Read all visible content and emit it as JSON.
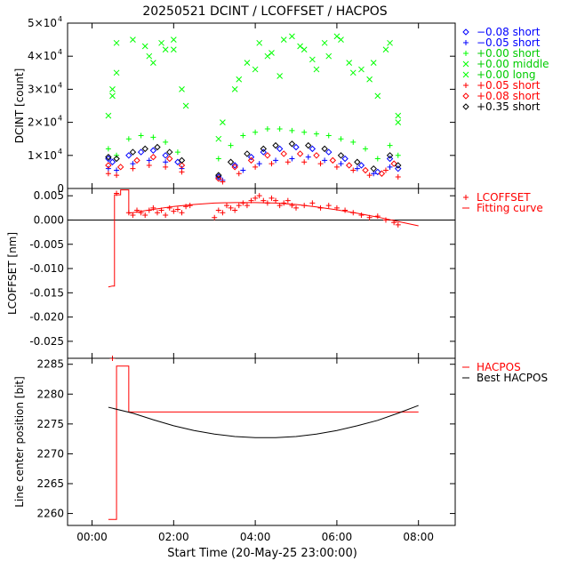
{
  "title": "20250521 DCINT / LCOFFSET / HACPOS",
  "xaxis": {
    "label": "Start Time (20-May-25 23:00:00)",
    "range": [
      -0.6,
      8.9
    ],
    "ticks": [
      0,
      2,
      4,
      6,
      8
    ],
    "tick_labels": [
      "00:00",
      "02:00",
      "04:00",
      "06:00",
      "08:00"
    ]
  },
  "chart_data": [
    {
      "type": "scatter",
      "ylabel": "DCINT [count]",
      "ylim": [
        0,
        50000
      ],
      "yticks": [
        0,
        10000,
        20000,
        30000,
        40000,
        50000
      ],
      "ytick_labels": [
        {
          "mant": "0",
          "exp": ""
        },
        {
          "mant": "1×10",
          "exp": "4"
        },
        {
          "mant": "2×10",
          "exp": "4"
        },
        {
          "mant": "3×10",
          "exp": "4"
        },
        {
          "mant": "4×10",
          "exp": "4"
        },
        {
          "mant": "5×10",
          "exp": "4"
        }
      ],
      "legend_position": "right",
      "series": [
        {
          "name": "−0.08 short",
          "color": "#0000ff",
          "marker": "diamond",
          "x": [
            0.4,
            0.5,
            0.9,
            1.2,
            1.5,
            1.8,
            2.1,
            3.1,
            3.5,
            3.9,
            4.2,
            4.6,
            5.0,
            5.4,
            5.8,
            6.2,
            6.6,
            7.0,
            7.3,
            7.5
          ],
          "y": [
            9000,
            8000,
            10000,
            11000,
            11500,
            10000,
            8000,
            3500,
            7000,
            9500,
            11000,
            12000,
            12500,
            12000,
            11000,
            9000,
            7000,
            5000,
            9000,
            6000
          ]
        },
        {
          "name": "−0.05 short",
          "color": "#0000ff",
          "marker": "plus",
          "x": [
            0.4,
            0.6,
            1.0,
            1.4,
            1.8,
            2.2,
            3.2,
            3.7,
            4.1,
            4.5,
            4.9,
            5.3,
            5.7,
            6.1,
            6.5,
            6.9,
            7.3
          ],
          "y": [
            6000,
            5500,
            7500,
            8500,
            8000,
            6000,
            2500,
            5500,
            7500,
            8500,
            9000,
            9500,
            8500,
            7500,
            6000,
            4500,
            6500
          ]
        },
        {
          "name": "+0.00 short",
          "color": "#00ff00",
          "marker": "plus",
          "x": [
            0.4,
            0.6,
            0.9,
            1.2,
            1.5,
            1.8,
            2.1,
            3.1,
            3.4,
            3.7,
            4.0,
            4.3,
            4.6,
            4.9,
            5.2,
            5.5,
            5.8,
            6.1,
            6.4,
            6.7,
            7.0,
            7.3,
            7.5
          ],
          "y": [
            12000,
            10000,
            15000,
            16000,
            15500,
            14000,
            11000,
            9000,
            13000,
            16000,
            17000,
            18000,
            18000,
            17500,
            17000,
            16500,
            16000,
            15000,
            14000,
            12000,
            9000,
            13000,
            10000
          ]
        },
        {
          "name": "+0.00 middle",
          "color": "#00ff00",
          "marker": "cross",
          "x": [
            0.4,
            0.5,
            0.6,
            1.3,
            1.5,
            1.8,
            2.0,
            2.2,
            3.1,
            3.5,
            3.8,
            4.0,
            4.3,
            4.6,
            4.9,
            5.2,
            5.5,
            5.8,
            6.1,
            6.3,
            6.6,
            6.8,
            7.0,
            7.3,
            7.5
          ],
          "y": [
            22000,
            28000,
            35000,
            43000,
            38000,
            42000,
            45000,
            30000,
            15000,
            30000,
            38000,
            36000,
            40000,
            34000,
            46000,
            42000,
            36000,
            40000,
            45000,
            38000,
            36000,
            33000,
            28000,
            44000,
            20000
          ]
        },
        {
          "name": "+0.00 long",
          "color": "#00ff00",
          "marker": "cross",
          "x": [
            0.5,
            0.6,
            1.0,
            1.4,
            1.7,
            2.0,
            2.3,
            3.2,
            3.6,
            4.1,
            4.4,
            4.7,
            5.1,
            5.4,
            5.7,
            6.0,
            6.4,
            6.9,
            7.2,
            7.5
          ],
          "y": [
            30000,
            44000,
            45000,
            40000,
            44000,
            42000,
            25000,
            20000,
            33000,
            44000,
            41000,
            45000,
            43000,
            39000,
            44000,
            46000,
            35000,
            38000,
            42000,
            22000
          ]
        },
        {
          "name": "+0.05 short",
          "color": "#ff0000",
          "marker": "plus",
          "x": [
            0.4,
            0.6,
            1.0,
            1.4,
            1.8,
            2.2,
            3.2,
            3.6,
            4.0,
            4.4,
            4.8,
            5.2,
            5.6,
            6.0,
            6.4,
            6.8,
            7.2,
            7.5
          ],
          "y": [
            4500,
            4000,
            6000,
            7000,
            6500,
            5000,
            2000,
            4500,
            6500,
            7500,
            8000,
            8000,
            7500,
            6500,
            5500,
            4000,
            5500,
            3500
          ]
        },
        {
          "name": "+0.08 short",
          "color": "#ff0000",
          "marker": "diamond",
          "x": [
            0.4,
            0.7,
            1.1,
            1.5,
            1.9,
            2.2,
            3.1,
            3.5,
            3.9,
            4.3,
            4.7,
            5.1,
            5.5,
            5.9,
            6.3,
            6.7,
            7.1,
            7.4
          ],
          "y": [
            7000,
            6500,
            8500,
            9500,
            9000,
            7000,
            3000,
            6500,
            8500,
            10000,
            10500,
            10500,
            10000,
            8500,
            7000,
            5500,
            4500,
            7500
          ]
        },
        {
          "name": "+0.35 short",
          "color": "#000000",
          "marker": "diamond",
          "x": [
            0.4,
            0.6,
            1.0,
            1.3,
            1.6,
            1.9,
            2.2,
            3.1,
            3.4,
            3.8,
            4.2,
            4.5,
            4.9,
            5.3,
            5.7,
            6.1,
            6.5,
            6.9,
            7.3,
            7.5
          ],
          "y": [
            9500,
            9000,
            11000,
            12000,
            12500,
            11000,
            8500,
            4000,
            8000,
            10500,
            12000,
            13000,
            13500,
            13000,
            12000,
            10000,
            8000,
            6000,
            10000,
            7000
          ]
        }
      ]
    },
    {
      "type": "scatter",
      "ylabel": "LCOFFSET [nm]",
      "ylim": [
        -0.0285,
        0.0065
      ],
      "yticks": [
        0.005,
        0.0,
        -0.005,
        -0.01,
        -0.015,
        -0.02,
        -0.025
      ],
      "ytick_labels": [
        "0.005",
        "0.000",
        "-0.005",
        "-0.010",
        "-0.015",
        "-0.020",
        "-0.025"
      ],
      "zero_line": 0,
      "legend_position": "right",
      "series": [
        {
          "name": "LCOFFSET",
          "color": "#ff0000",
          "marker": "plus",
          "x": [
            0.5,
            0.9,
            1.0,
            1.1,
            1.2,
            1.3,
            1.4,
            1.5,
            1.6,
            1.7,
            1.8,
            1.9,
            2.0,
            2.1,
            2.2,
            2.3,
            2.4,
            3.0,
            3.1,
            3.2,
            3.3,
            3.4,
            3.5,
            3.6,
            3.7,
            3.8,
            3.9,
            4.0,
            4.1,
            4.2,
            4.3,
            4.4,
            4.5,
            4.6,
            4.7,
            4.8,
            4.9,
            5.0,
            5.2,
            5.4,
            5.6,
            5.8,
            6.0,
            6.2,
            6.4,
            6.6,
            6.8,
            7.0,
            7.2,
            7.4,
            7.5,
            0.6
          ],
          "y": [
            -0.0285,
            0.0015,
            0.001,
            0.002,
            0.0015,
            0.001,
            0.002,
            0.0025,
            0.0015,
            0.002,
            0.001,
            0.0025,
            0.0018,
            0.0022,
            0.0015,
            0.0028,
            0.003,
            0.0005,
            0.002,
            0.0015,
            0.003,
            0.0025,
            0.002,
            0.003,
            0.0035,
            0.003,
            0.004,
            0.0045,
            0.005,
            0.004,
            0.0035,
            0.0045,
            0.004,
            0.003,
            0.0035,
            0.004,
            0.003,
            0.0025,
            0.003,
            0.0035,
            0.0025,
            0.003,
            0.0025,
            0.002,
            0.0015,
            0.001,
            0.0005,
            0.0008,
            0.0,
            -0.0005,
            -0.001,
            0.0055
          ]
        },
        {
          "name": "Fitting curve",
          "color": "#ff0000",
          "marker": "line",
          "x": [
            0.9,
            1.5,
            2.0,
            2.5,
            3.0,
            3.5,
            4.0,
            4.5,
            5.0,
            5.5,
            6.0,
            6.5,
            7.0,
            7.5,
            8.0
          ],
          "y": [
            0.0014,
            0.0022,
            0.0028,
            0.0032,
            0.0035,
            0.0036,
            0.0036,
            0.0035,
            0.0032,
            0.0027,
            0.0021,
            0.0014,
            0.0006,
            -0.0003,
            -0.0012
          ]
        },
        {
          "name": "",
          "color": "#ff0000",
          "marker": "step",
          "x": [
            0.4,
            0.5,
            0.55,
            0.55,
            0.7,
            0.7,
            0.9,
            0.9
          ],
          "y": [
            -0.0138,
            -0.0136,
            -0.0136,
            0.0052,
            0.0052,
            0.0062,
            0.0062,
            0.0014
          ]
        }
      ]
    },
    {
      "type": "line",
      "ylabel": "Line center position [bit]",
      "ylim": [
        2258,
        2286
      ],
      "yticks": [
        2260,
        2265,
        2270,
        2275,
        2280,
        2285
      ],
      "ytick_labels": [
        "2260",
        "2265",
        "2270",
        "2275",
        "2280",
        "2285"
      ],
      "legend_position": "right",
      "series": [
        {
          "name": "HACPOS",
          "color": "#ff0000",
          "x": [
            0.4,
            0.6,
            0.6,
            0.9,
            0.9,
            8.0
          ],
          "y": [
            2259,
            2259,
            2284.7,
            2284.7,
            2277,
            2277
          ]
        },
        {
          "name": "Best HACPOS",
          "color": "#000000",
          "x": [
            0.4,
            1.0,
            1.5,
            2.0,
            2.5,
            3.0,
            3.5,
            4.0,
            4.5,
            5.0,
            5.5,
            6.0,
            6.5,
            7.0,
            7.5,
            8.0
          ],
          "y": [
            2277.8,
            2276.8,
            2275.7,
            2274.7,
            2273.9,
            2273.3,
            2272.9,
            2272.7,
            2272.7,
            2272.9,
            2273.3,
            2273.9,
            2274.7,
            2275.6,
            2276.8,
            2278.1
          ]
        },
        {
          "name": "",
          "color": "#ff0000",
          "marker": "plus",
          "x": [
            0.5
          ],
          "y": [
            2286
          ]
        }
      ]
    }
  ]
}
